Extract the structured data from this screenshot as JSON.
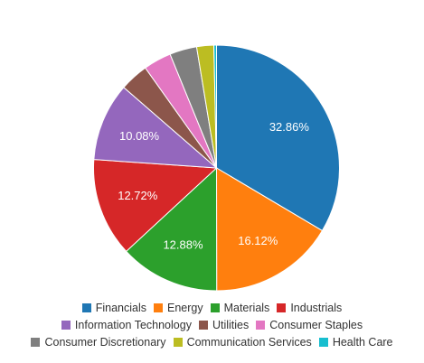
{
  "chart_data": {
    "type": "pie",
    "title": "",
    "legend_position": "bottom",
    "start_angle_deg": 0,
    "direction": "clockwise",
    "slices": [
      {
        "name": "Financials",
        "value": 32.86,
        "label": "32.86%",
        "color": "#1f77b4"
      },
      {
        "name": "Energy",
        "value": 16.12,
        "label": "16.12%",
        "color": "#ff7f0e"
      },
      {
        "name": "Materials",
        "value": 12.88,
        "label": "12.88%",
        "color": "#2ca02c"
      },
      {
        "name": "Industrials",
        "value": 12.72,
        "label": "12.72%",
        "color": "#d62728"
      },
      {
        "name": "Information Technology",
        "value": 10.08,
        "label": "10.08%",
        "color": "#9467bd"
      },
      {
        "name": "Utilities",
        "value": 3.7,
        "label": "",
        "color": "#8c564b"
      },
      {
        "name": "Consumer Staples",
        "value": 3.6,
        "label": "",
        "color": "#e377c2"
      },
      {
        "name": "Consumer Discretionary",
        "value": 3.5,
        "label": "",
        "color": "#7f7f7f"
      },
      {
        "name": "Communication Services",
        "value": 2.2,
        "label": "",
        "color": "#bcbd22"
      },
      {
        "name": "Health Care",
        "value": 0.34,
        "label": "",
        "color": "#17becf"
      }
    ],
    "legend_rows": [
      [
        "Financials",
        "Energy",
        "Materials",
        "Industrials"
      ],
      [
        "Information Technology",
        "Utilities",
        "Consumer Staples"
      ],
      [
        "Consumer Discretionary",
        "Communication Services",
        "Health Care"
      ]
    ]
  }
}
